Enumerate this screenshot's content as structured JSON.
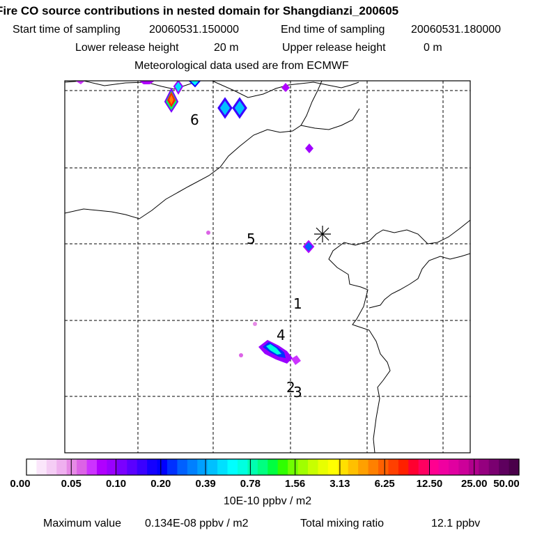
{
  "header": {
    "title": "Fire CO source contributions in nested domain for Shangdianzi_200605",
    "start_label": "Start time of sampling",
    "start_value": "20060531.150000",
    "end_label": "End time of sampling",
    "end_value": "20060531.180000",
    "lower_label": "Lower release height",
    "lower_value": "20 m",
    "upper_label": "Upper release height",
    "upper_value": "0 m",
    "met_text": "Meteorological data used are from ECMWF"
  },
  "chart_data": {
    "type": "heatmap",
    "title": "Fire CO source contributions in nested domain for Shangdianzi_200605",
    "grid": true,
    "station_marker": "asterisk",
    "region_labels": [
      "6",
      "5",
      "1",
      "4",
      "2",
      "3"
    ],
    "hotspots": [
      {
        "region": "6",
        "level": "12.50"
      },
      {
        "region": "6",
        "level": "0.39"
      },
      {
        "region": "6",
        "level": "0.20"
      },
      {
        "region": "5",
        "level": "0.10"
      },
      {
        "region": "4",
        "level": "0.39"
      }
    ],
    "colorbar": {
      "ticks": [
        "0.00",
        "0.05",
        "0.10",
        "0.20",
        "0.39",
        "0.78",
        "1.56",
        "3.13",
        "6.25",
        "12.50",
        "25.00",
        "50.00"
      ],
      "unit_label": "10E-10 ppbv / m2",
      "colors": [
        "#ffffff",
        "#fbe6fb",
        "#f5cdf5",
        "#efb0ef",
        "#e68ae6",
        "#dc63e6",
        "#cc33ff",
        "#b000ff",
        "#9900ff",
        "#7a00ff",
        "#5a00ff",
        "#3a00ff",
        "#1400ff",
        "#0000ff",
        "#0030ff",
        "#0060ff",
        "#0080ff",
        "#00a0ff",
        "#00c0ff",
        "#00e0ff",
        "#00ffff",
        "#00ffe0",
        "#00ffb0",
        "#00ff80",
        "#00ff40",
        "#30ff00",
        "#70ff00",
        "#a0ff00",
        "#c8ff00",
        "#e8ff00",
        "#ffff00",
        "#ffe000",
        "#ffc000",
        "#ffa000",
        "#ff8000",
        "#ff6000",
        "#ff4000",
        "#ff2000",
        "#ff0030",
        "#ff0060",
        "#ff0090",
        "#f000a0",
        "#e000a0",
        "#cc0099",
        "#b0008c",
        "#95007f",
        "#7a0070",
        "#5e005e",
        "#4a004a"
      ]
    },
    "maximum_label": "Maximum value",
    "maximum_value": "0.134E-08 ppbv / m2",
    "total_label": "Total mixing ratio",
    "total_value": "12.1 ppbv"
  }
}
